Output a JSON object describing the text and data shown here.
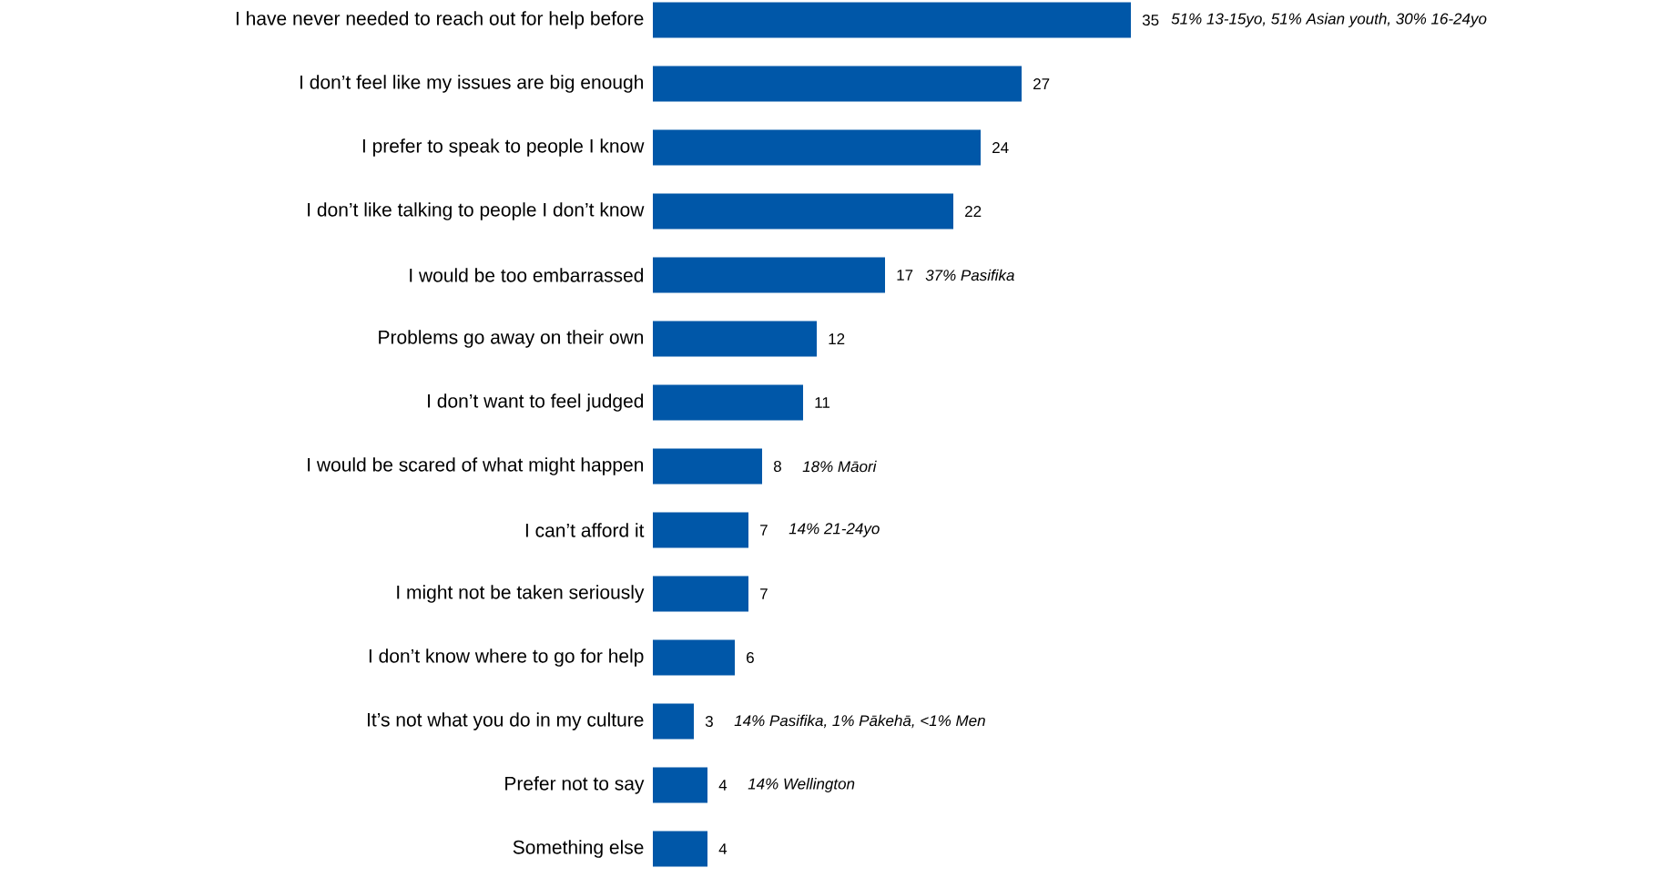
{
  "chart_data": {
    "type": "bar",
    "orientation": "horizontal",
    "color": "#0057a8",
    "data_labels": true,
    "categories": [
      "I have never needed to reach out for help before",
      "I don’t feel like my issues are big enough",
      "I prefer to speak to people I know",
      "I don’t like talking to people I don’t know",
      "I would be too embarrassed",
      "Problems go away on their own",
      "I don’t want to feel judged",
      "I would be scared of what might happen",
      "I can’t afford it",
      "I might not be taken seriously",
      "I don’t know where to go for help",
      "It’s not what you do in my culture",
      "Prefer not to say",
      "Something else"
    ],
    "values": [
      35,
      27,
      24,
      22,
      17,
      12,
      11,
      8,
      7,
      7,
      6,
      3,
      4,
      4
    ],
    "annotations": [
      {
        "text": "51% 13-15yo, 51% Asian youth, 30% 16-24yo",
        "x": 35,
        "y": "I have never needed to reach out for help before"
      },
      {
        "text": "37% Pasifika",
        "x": 17,
        "y": "I would be too embarrassed"
      },
      {
        "text": "18% Māori",
        "x": 8,
        "y": "I would be scared of what might happen"
      },
      {
        "text": "14% 21-24yo",
        "x": 7,
        "y": "I can’t afford it"
      },
      {
        "text": "14% Pasifika, 1% Pākehā, <1% Men",
        "x": 3,
        "y": "It’s not what you do in my culture"
      },
      {
        "text": "14% Wellington",
        "x": 4,
        "y": "Prefer not to say"
      }
    ]
  }
}
